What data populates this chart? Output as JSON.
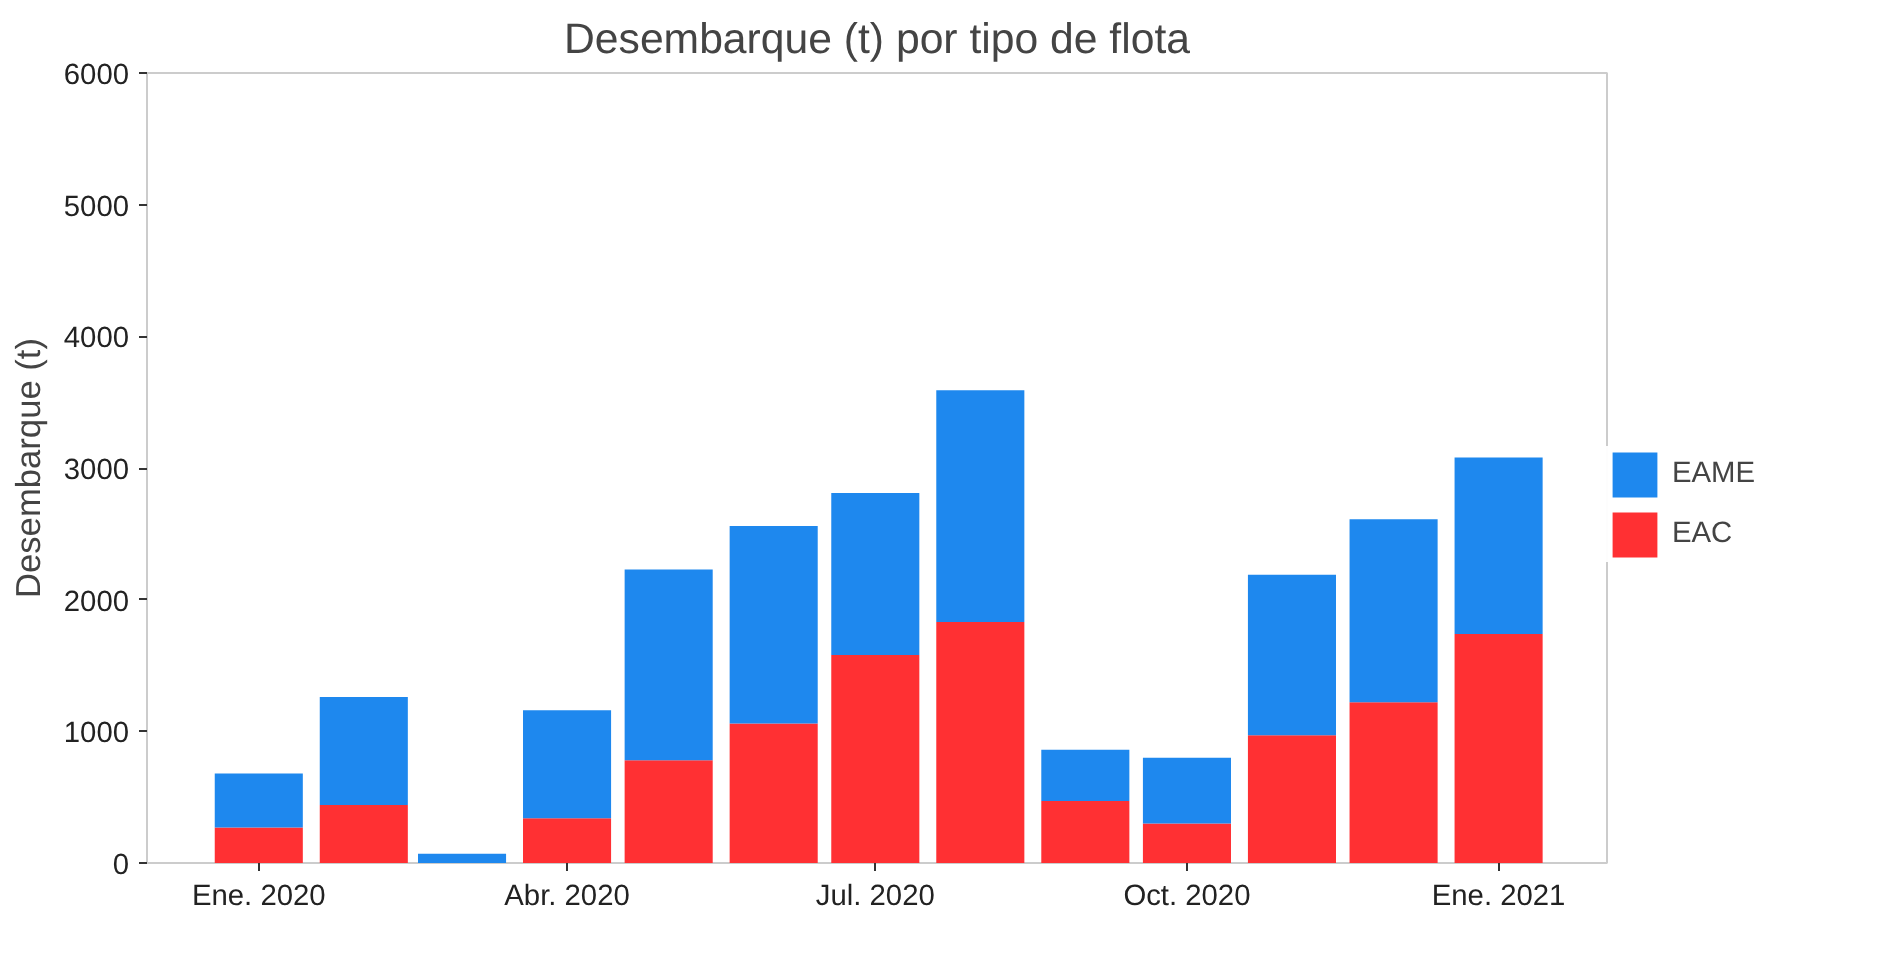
{
  "chart_data": {
    "type": "bar",
    "stacked": true,
    "title": "Desembarque (t) por tipo de flota",
    "ylabel": "Desembarque (t)",
    "x": [
      "2020-01",
      "2020-02",
      "2020-03",
      "2020-04",
      "2020-05",
      "2020-06",
      "2020-07",
      "2020-08",
      "2020-09",
      "2020-10",
      "2020-11",
      "2020-12",
      "2021-01"
    ],
    "series": [
      {
        "name": "EAC",
        "color": "#ff3033",
        "values": [
          270,
          440,
          0,
          340,
          780,
          1060,
          1580,
          1830,
          470,
          300,
          970,
          1220,
          1740
        ]
      },
      {
        "name": "EAME",
        "color": "#1e88ee",
        "values": [
          410,
          820,
          70,
          820,
          1450,
          1500,
          1230,
          1760,
          390,
          500,
          1220,
          1390,
          1340
        ]
      }
    ],
    "xlim": [
      "2019-11-29",
      "2021-02-02"
    ],
    "xticks": [
      {
        "value": "2020-01",
        "label": "Ene. 2020"
      },
      {
        "value": "2020-04",
        "label": "Abr. 2020"
      },
      {
        "value": "2020-07",
        "label": "Jul. 2020"
      },
      {
        "value": "2020-10",
        "label": "Oct. 2020"
      },
      {
        "value": "2021-01",
        "label": "Ene. 2021"
      }
    ],
    "ylim": [
      0,
      6000
    ],
    "yticks": [
      0,
      1000,
      2000,
      3000,
      4000,
      5000,
      6000
    ],
    "grid": false,
    "legend": "right"
  }
}
